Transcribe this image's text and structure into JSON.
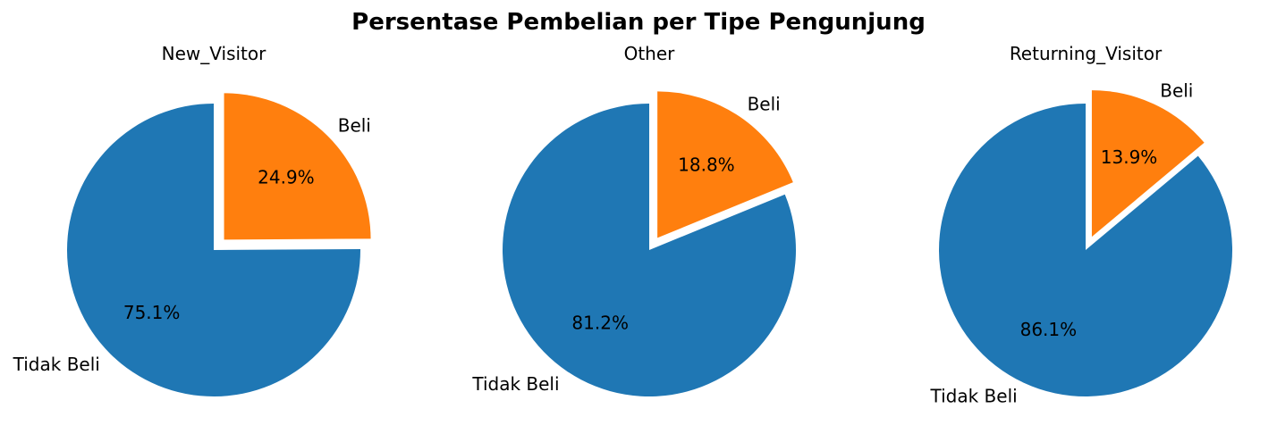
{
  "chart_data": {
    "type": "pie",
    "title": "Persentase Pembelian per Tipe Pengunjung",
    "colors": {
      "Tidak Beli": "#1f77b4",
      "Beli": "#ff7f0e"
    },
    "explode": "Beli",
    "start_angle": "top, clockwise",
    "charts": [
      {
        "title": "New_Visitor",
        "slices": [
          {
            "label": "Beli",
            "value": 24.9,
            "pct_label": "24.9%"
          },
          {
            "label": "Tidak Beli",
            "value": 75.1,
            "pct_label": "75.1%"
          }
        ]
      },
      {
        "title": "Other",
        "slices": [
          {
            "label": "Beli",
            "value": 18.8,
            "pct_label": "18.8%"
          },
          {
            "label": "Tidak Beli",
            "value": 81.2,
            "pct_label": "81.2%"
          }
        ]
      },
      {
        "title": "Returning_Visitor",
        "slices": [
          {
            "label": "Beli",
            "value": 13.9,
            "pct_label": "13.9%"
          },
          {
            "label": "Tidak Beli",
            "value": 86.1,
            "pct_label": "86.1%"
          }
        ]
      }
    ]
  }
}
